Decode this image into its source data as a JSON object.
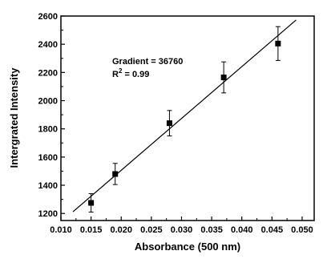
{
  "chart_data": {
    "type": "scatter",
    "xlabel": "Absorbance (500 nm)",
    "ylabel": "Intergrated Intensity",
    "xlim": [
      0.01,
      0.052
    ],
    "ylim": [
      1150,
      2600
    ],
    "x_ticks": [
      0.01,
      0.015,
      0.02,
      0.025,
      0.03,
      0.035,
      0.04,
      0.045,
      0.05
    ],
    "x_tick_labels": [
      "0.010",
      "0.015",
      "0.020",
      "0.025",
      "0.030",
      "0.035",
      "0.040",
      "0.045",
      "0.050"
    ],
    "y_ticks": [
      1200,
      1400,
      1600,
      1800,
      2000,
      2200,
      2400,
      2600
    ],
    "y_tick_labels": [
      "1200",
      "1400",
      "1600",
      "1800",
      "2000",
      "2200",
      "2400",
      "2600"
    ],
    "points": [
      {
        "x": 0.015,
        "y": 1275,
        "err": 65
      },
      {
        "x": 0.019,
        "y": 1480,
        "err": 75
      },
      {
        "x": 0.028,
        "y": 1840,
        "err": 90
      },
      {
        "x": 0.037,
        "y": 2165,
        "err": 110
      },
      {
        "x": 0.046,
        "y": 2405,
        "err": 120
      }
    ],
    "fit_line": {
      "x": [
        0.012,
        0.049
      ],
      "y": [
        1212,
        2572
      ]
    },
    "annotations": {
      "gradient": "Gradient = 36760",
      "r2_prefix": "R",
      "r2_sup": "2",
      "r2_value": " = 0.99"
    },
    "grid": false,
    "legend": "none"
  }
}
